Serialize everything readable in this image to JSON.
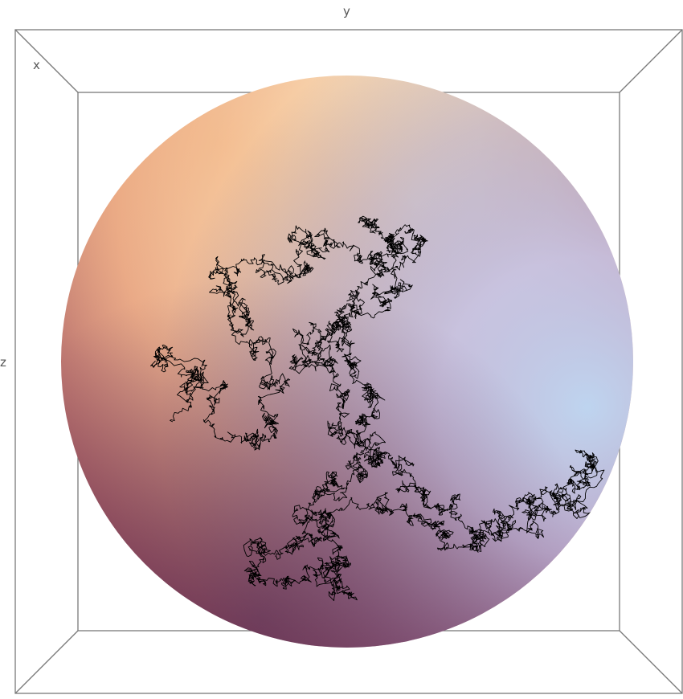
{
  "axes": {
    "x_label": "x",
    "y_label": "y",
    "z_label": "z"
  },
  "colors": {
    "box_edges": "#7a7a7a",
    "path": "#000000",
    "sphere_highlight": "#fff8dc",
    "sphere_warm": "#f0a46a",
    "sphere_cool": "#8a8ad0",
    "sphere_shadow": "#6a2f4f"
  },
  "scene": {
    "shape": "sphere",
    "overlay": "random-walk-path"
  }
}
